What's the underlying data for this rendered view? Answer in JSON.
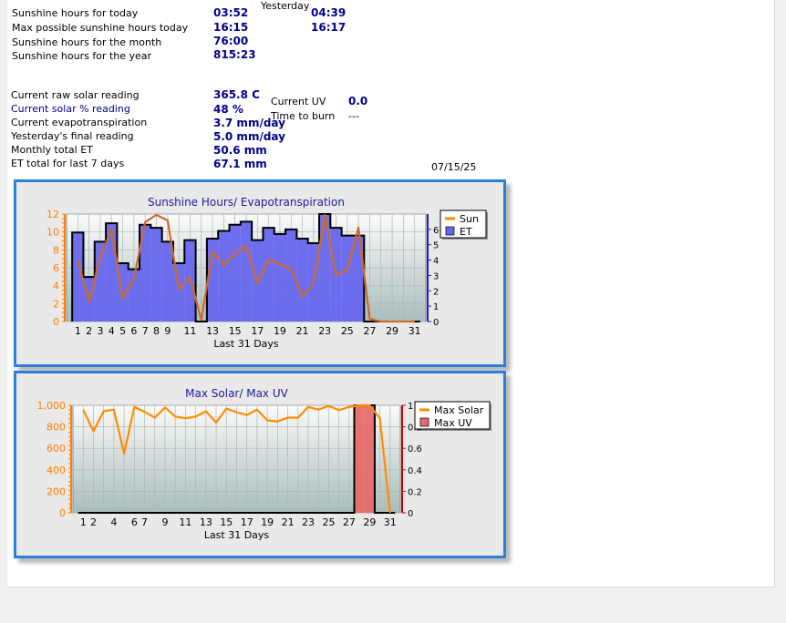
{
  "stats": {
    "sunshine_today_label": "Sunshine hours for today",
    "sunshine_today_value": "03:52",
    "yesterday_label": "Yesterday",
    "yesterday_value": "04:39",
    "max_possible_label": "Max possible sunshine hours today",
    "max_possible_value": "16:15",
    "max_possible_yesterday": "16:17",
    "month_label": "Sunshine hours for the month",
    "month_value": "76:00",
    "year_label": "Sunshine hours for the year",
    "year_value": "815:23",
    "raw_solar_label": "Current raw solar reading",
    "raw_solar_value": "365.8 C",
    "solar_pct_label": "Current solar % reading",
    "solar_pct_value": "48 %",
    "evapo_label": "Current evapotranspiration",
    "evapo_value": "3.7 mm/day",
    "yesterday_final_label": "Yesterday's final reading",
    "yesterday_final_value": "5.0 mm/day",
    "monthly_et_label": "Monthly total ET",
    "monthly_et_value": "50.6 mm",
    "et7_label": "ET total for last 7 days",
    "et7_value": "67.1 mm",
    "uv_label": "Current UV",
    "uv_value": "0.0",
    "burn_label": "Time to burn",
    "burn_value": "---",
    "date": "07/15/25"
  },
  "colors": {
    "sun_line": "#ff8c00",
    "et_bar": "#6666ee",
    "solar_line": "#ff8c00",
    "uv_bar": "#e86a6a",
    "frame": "#2c7fd8"
  },
  "chart_data": [
    {
      "type": "bar",
      "title": "Sunshine Hours/ Evapotranspiration",
      "xlabel": "Last 31 Days",
      "x": [
        1,
        2,
        3,
        4,
        5,
        6,
        7,
        8,
        9,
        10,
        11,
        12,
        13,
        14,
        15,
        16,
        17,
        18,
        19,
        20,
        21,
        22,
        23,
        24,
        25,
        26,
        27,
        28,
        29,
        30,
        31
      ],
      "xticks": [
        "1",
        "2",
        "3",
        "4",
        "5",
        "6",
        "7",
        "8",
        "9",
        "11",
        "13",
        "15",
        "17",
        "19",
        "21",
        "23",
        "25",
        "27",
        "29",
        "31"
      ],
      "left_axis": {
        "ylim": [
          0,
          12
        ],
        "ticks": [
          "0",
          "2",
          "4",
          "6",
          "8",
          "10",
          "12"
        ]
      },
      "right_axis": {
        "ylim": [
          0,
          7
        ],
        "ticks": [
          "0",
          "1",
          "2",
          "3",
          "4",
          "5",
          "6"
        ]
      },
      "legend_position": "top-right",
      "series": [
        {
          "name": "Sun",
          "type": "line",
          "axis": "left",
          "values": [
            6.8,
            2.2,
            7.2,
            10.3,
            2.6,
            4.8,
            11.1,
            11.9,
            11.3,
            3.6,
            4.9,
            0.2,
            7.8,
            6.3,
            7.6,
            8.4,
            4.3,
            6.9,
            6.4,
            5.9,
            2.8,
            4.2,
            11.9,
            5.2,
            5.8,
            10.5,
            0.3,
            0,
            0,
            0,
            0
          ]
        },
        {
          "name": "ET",
          "type": "bar",
          "axis": "right",
          "values": [
            5.8,
            2.9,
            5.2,
            6.4,
            3.8,
            3.4,
            6.3,
            6.1,
            5.2,
            3.8,
            5.3,
            0.0,
            5.4,
            5.9,
            6.3,
            6.5,
            5.3,
            6.1,
            5.7,
            6.0,
            5.4,
            5.1,
            7.0,
            6.1,
            5.6,
            5.6,
            0,
            0,
            0,
            0,
            0
          ]
        }
      ]
    },
    {
      "type": "bar",
      "title": "Max Solar/ Max UV",
      "xlabel": "Last 31 Days",
      "x": [
        1,
        2,
        3,
        4,
        5,
        6,
        7,
        8,
        9,
        10,
        11,
        12,
        13,
        14,
        15,
        16,
        17,
        18,
        19,
        20,
        21,
        22,
        23,
        24,
        25,
        26,
        27,
        28,
        29,
        30,
        31
      ],
      "xticks": [
        "1",
        "2",
        "4",
        "6",
        "7",
        "9",
        "11",
        "13",
        "15",
        "17",
        "19",
        "21",
        "23",
        "25",
        "27",
        "29",
        "31"
      ],
      "left_axis": {
        "ylim": [
          0,
          1000
        ],
        "ticks": [
          "0",
          "200",
          "400",
          "600",
          "800",
          "1,000"
        ]
      },
      "right_axis": {
        "ylim": [
          0,
          1
        ],
        "ticks": [
          "0",
          "0.2",
          "0.4",
          "0.6",
          "0.8",
          "1"
        ]
      },
      "legend_position": "top-right",
      "series": [
        {
          "name": "Max Solar",
          "type": "line",
          "axis": "left",
          "values": [
            960,
            760,
            945,
            960,
            550,
            985,
            940,
            885,
            980,
            895,
            880,
            895,
            945,
            840,
            970,
            935,
            910,
            960,
            860,
            850,
            885,
            885,
            985,
            960,
            995,
            955,
            985,
            1000,
            1000,
            880,
            0
          ]
        },
        {
          "name": "Max UV",
          "type": "bar",
          "axis": "right",
          "values": [
            0,
            0,
            0,
            0,
            0,
            0,
            0,
            0,
            0,
            0,
            0,
            0,
            0,
            0,
            0,
            0,
            0,
            0,
            0,
            0,
            0,
            0,
            0,
            0,
            0,
            0,
            0,
            1.0,
            1.0,
            0,
            0
          ]
        }
      ]
    }
  ]
}
